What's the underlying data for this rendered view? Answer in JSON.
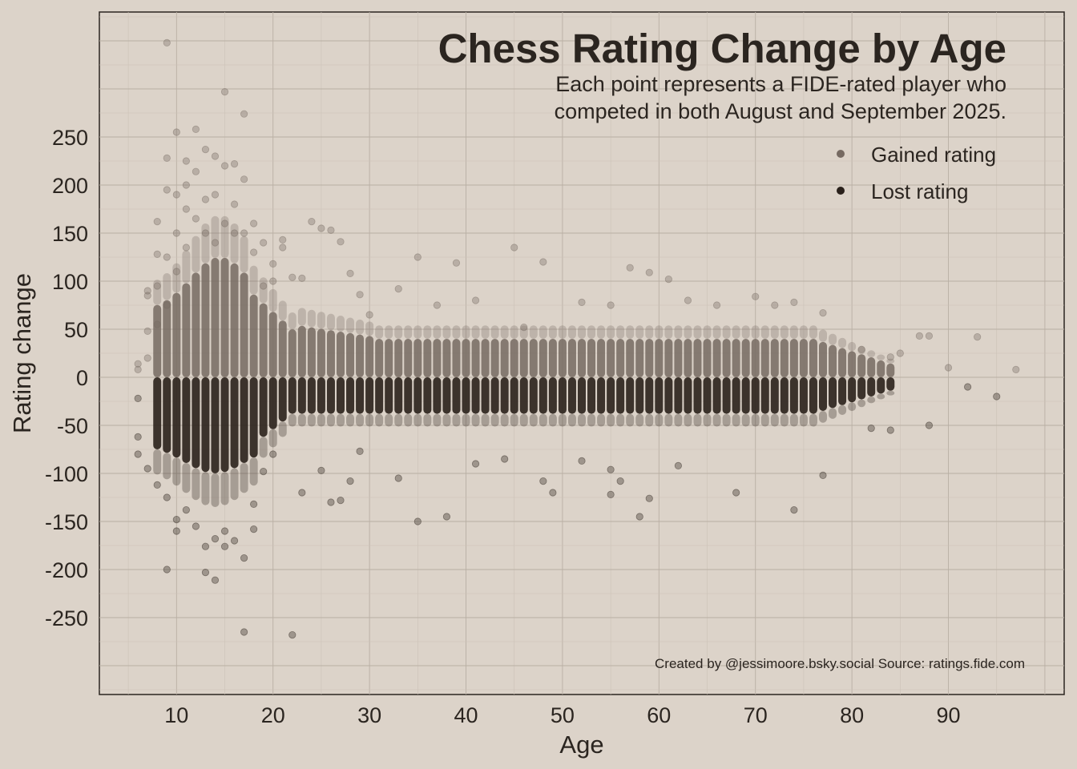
{
  "chart_data": {
    "type": "scatter",
    "title": "Chess Rating Change by Age",
    "subtitle_lines": [
      "Each point represents a FIDE-rated player who",
      "competed in both August and September 2025."
    ],
    "xlabel": "Age",
    "ylabel": "Rating change",
    "caption": "Created by @jessimoore.bsky.social Source: ratings.fide.com",
    "xlim": [
      2,
      102
    ],
    "ylim": [
      -330,
      380
    ],
    "x_ticks": [
      10,
      20,
      30,
      40,
      50,
      60,
      70,
      80,
      90
    ],
    "x_tick_labels": [
      "10",
      "20",
      "30",
      "40",
      "50",
      "60",
      "70",
      "80",
      "90"
    ],
    "y_ticks": [
      250,
      200,
      150,
      100,
      50,
      0,
      -50,
      -100,
      -150,
      -200,
      -250
    ],
    "y_tick_labels": [
      "250",
      "200",
      "150",
      "100",
      "50",
      "0",
      "-50",
      "-100",
      "-150",
      "-200",
      "-250"
    ],
    "grid": true,
    "legend_position": "top-right",
    "series": [
      {
        "name": "Gained rating",
        "color": "#766a62",
        "points": [
          [
            6,
            8
          ],
          [
            6,
            14
          ],
          [
            7,
            20
          ],
          [
            7,
            48
          ],
          [
            7,
            85
          ],
          [
            7,
            90
          ],
          [
            8,
            55
          ],
          [
            8,
            95
          ],
          [
            8,
            128
          ],
          [
            8,
            162
          ],
          [
            9,
            75
          ],
          [
            9,
            125
          ],
          [
            9,
            195
          ],
          [
            9,
            228
          ],
          [
            9,
            348
          ],
          [
            10,
            110
          ],
          [
            10,
            150
          ],
          [
            10,
            190
          ],
          [
            10,
            255
          ],
          [
            11,
            135
          ],
          [
            11,
            175
          ],
          [
            11,
            225
          ],
          [
            11,
            200
          ],
          [
            12,
            165
          ],
          [
            12,
            214
          ],
          [
            12,
            258
          ],
          [
            13,
            150
          ],
          [
            13,
            185
          ],
          [
            13,
            237
          ],
          [
            14,
            140
          ],
          [
            14,
            190
          ],
          [
            14,
            230
          ],
          [
            15,
            160
          ],
          [
            15,
            220
          ],
          [
            15,
            297
          ],
          [
            16,
            150
          ],
          [
            16,
            180
          ],
          [
            16,
            222
          ],
          [
            17,
            150
          ],
          [
            17,
            206
          ],
          [
            17,
            274
          ],
          [
            18,
            130
          ],
          [
            18,
            160
          ],
          [
            19,
            95
          ],
          [
            19,
            140
          ],
          [
            20,
            100
          ],
          [
            20,
            118
          ],
          [
            21,
            143
          ],
          [
            21,
            135
          ],
          [
            22,
            104
          ],
          [
            23,
            103
          ],
          [
            24,
            162
          ],
          [
            25,
            155
          ],
          [
            26,
            153
          ],
          [
            27,
            141
          ],
          [
            28,
            108
          ],
          [
            29,
            86
          ],
          [
            30,
            65
          ],
          [
            33,
            92
          ],
          [
            35,
            125
          ],
          [
            37,
            75
          ],
          [
            39,
            119
          ],
          [
            41,
            80
          ],
          [
            45,
            135
          ],
          [
            46,
            52
          ],
          [
            48,
            120
          ],
          [
            52,
            78
          ],
          [
            55,
            75
          ],
          [
            57,
            114
          ],
          [
            59,
            109
          ],
          [
            61,
            102
          ],
          [
            63,
            80
          ],
          [
            66,
            75
          ],
          [
            70,
            84
          ],
          [
            72,
            75
          ],
          [
            74,
            78
          ],
          [
            77,
            67
          ],
          [
            81,
            29
          ],
          [
            84,
            21
          ],
          [
            85,
            25
          ],
          [
            87,
            43
          ],
          [
            88,
            43
          ],
          [
            90,
            10
          ],
          [
            93,
            42
          ],
          [
            97,
            8
          ]
        ]
      },
      {
        "name": "Lost rating",
        "color": "#2a211b",
        "points": [
          [
            6,
            -22
          ],
          [
            6,
            -62
          ],
          [
            6,
            -80
          ],
          [
            7,
            -95
          ],
          [
            8,
            -112
          ],
          [
            9,
            -125
          ],
          [
            9,
            -200
          ],
          [
            10,
            -148
          ],
          [
            10,
            -160
          ],
          [
            11,
            -138
          ],
          [
            12,
            -155
          ],
          [
            13,
            -176
          ],
          [
            13,
            -203
          ],
          [
            14,
            -168
          ],
          [
            14,
            -211
          ],
          [
            15,
            -160
          ],
          [
            15,
            -176
          ],
          [
            16,
            -170
          ],
          [
            17,
            -188
          ],
          [
            17,
            -265
          ],
          [
            18,
            -158
          ],
          [
            18,
            -132
          ],
          [
            19,
            -98
          ],
          [
            20,
            -80
          ],
          [
            22,
            -268
          ],
          [
            23,
            -120
          ],
          [
            25,
            -97
          ],
          [
            26,
            -130
          ],
          [
            27,
            -128
          ],
          [
            28,
            -108
          ],
          [
            29,
            -77
          ],
          [
            33,
            -105
          ],
          [
            35,
            -150
          ],
          [
            38,
            -145
          ],
          [
            41,
            -90
          ],
          [
            44,
            -85
          ],
          [
            48,
            -108
          ],
          [
            49,
            -120
          ],
          [
            52,
            -87
          ],
          [
            55,
            -122
          ],
          [
            55,
            -96
          ],
          [
            56,
            -108
          ],
          [
            58,
            -145
          ],
          [
            59,
            -126
          ],
          [
            62,
            -92
          ],
          [
            68,
            -120
          ],
          [
            74,
            -138
          ],
          [
            77,
            -102
          ],
          [
            82,
            -53
          ],
          [
            84,
            -55
          ],
          [
            88,
            -50
          ],
          [
            92,
            -10
          ],
          [
            95,
            -20
          ]
        ]
      }
    ]
  }
}
